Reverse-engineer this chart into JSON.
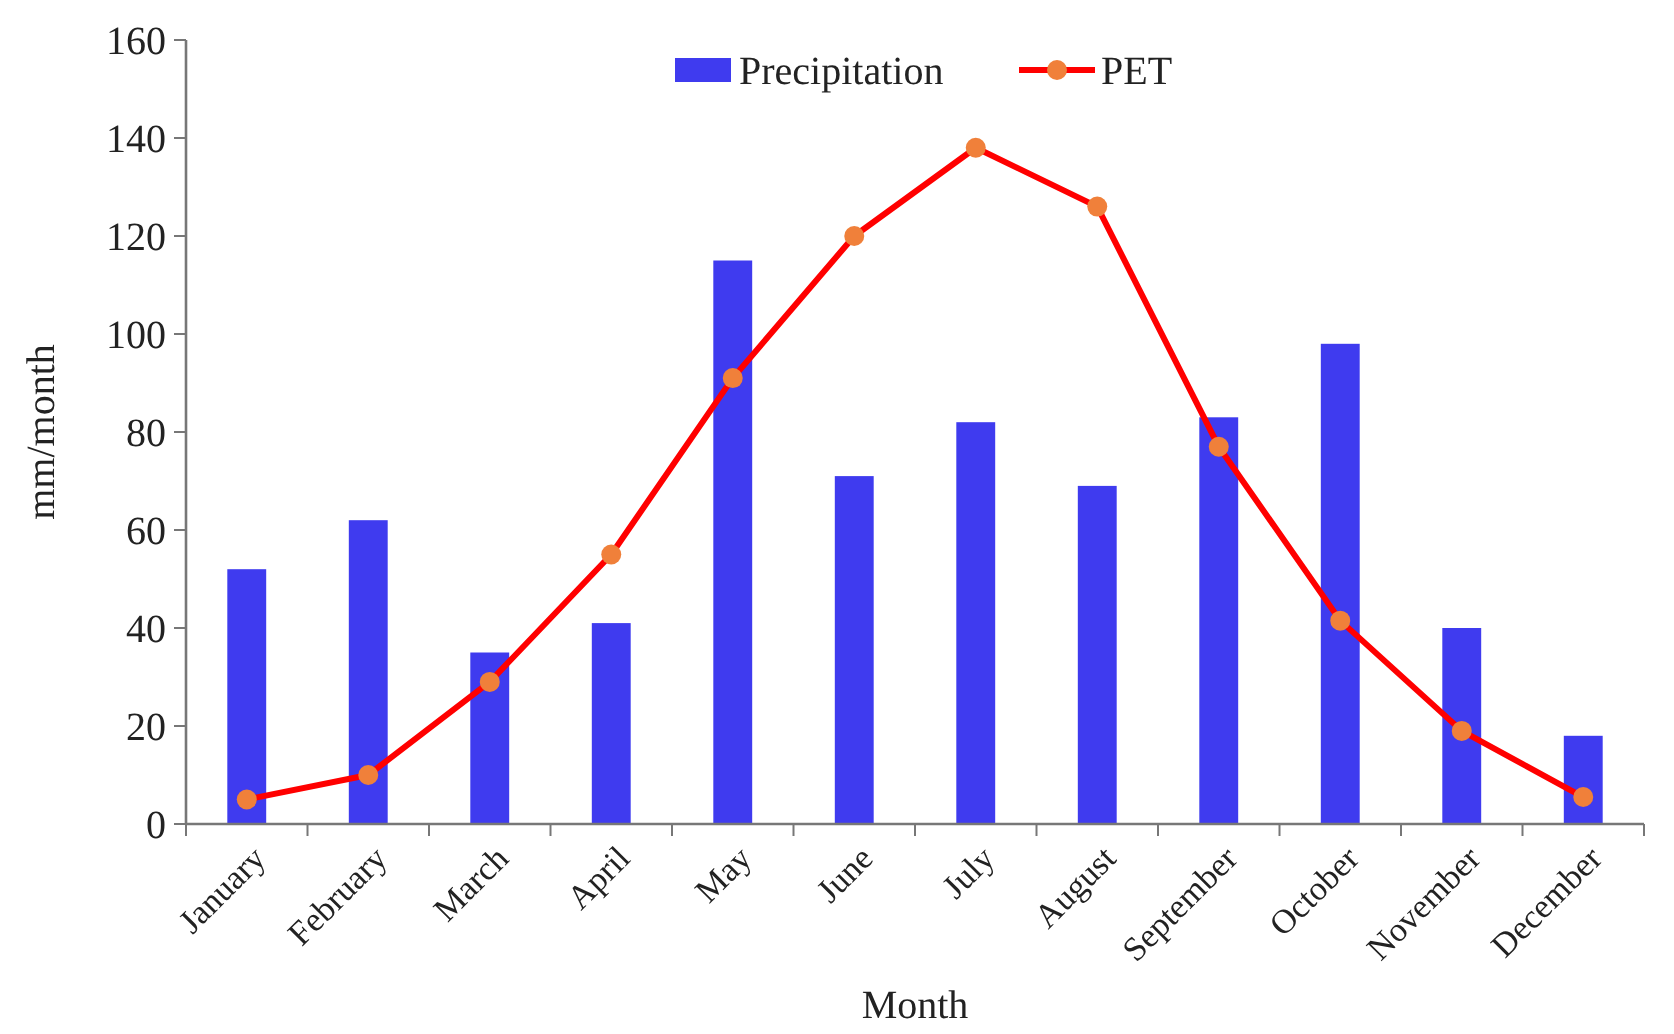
{
  "chart_data": {
    "type": "bar",
    "xlabel": "Month",
    "ylabel": "mm/month",
    "categories": [
      "January",
      "February",
      "March",
      "April",
      "May",
      "June",
      "July",
      "August",
      "September",
      "October",
      "November",
      "December"
    ],
    "series": [
      {
        "name": "Precipitation",
        "color": "#3f3bef",
        "values": [
          52,
          62,
          35,
          41,
          115,
          71,
          82,
          69,
          83,
          98,
          40,
          18
        ]
      },
      {
        "name": "PET",
        "type": "line",
        "color": "#ff0000",
        "marker": "circle",
        "values": [
          5,
          10,
          29,
          55,
          91,
          120,
          138,
          126,
          77,
          41.5,
          19,
          5.5
        ]
      }
    ],
    "ylim": [
      0,
      160
    ],
    "yticks": [
      0,
      20,
      40,
      60,
      80,
      100,
      120,
      140,
      160
    ],
    "legend": "top",
    "grid": false
  }
}
